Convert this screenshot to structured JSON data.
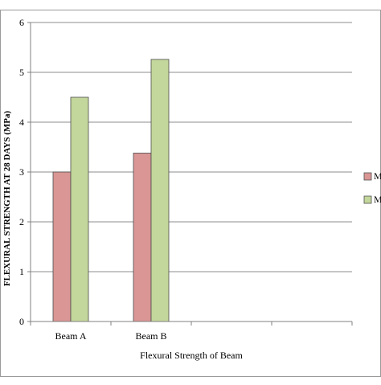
{
  "chart_data": {
    "type": "bar",
    "categories": [
      "Beam A",
      "Beam B",
      "",
      ""
    ],
    "series": [
      {
        "name": "M",
        "color": "#d99694",
        "values": [
          3.0,
          3.38,
          null,
          null
        ]
      },
      {
        "name": "M",
        "color": "#c3d69b",
        "values": [
          4.5,
          5.26,
          null,
          null
        ]
      }
    ],
    "xlabel": "Flexural Strength  of Beam",
    "ylabel": "FLEXURAL STRENGTH  AT 28 DAYS (MPa)",
    "ylim": [
      0,
      6
    ],
    "yticks": [
      0,
      1,
      2,
      3,
      4,
      5,
      6
    ],
    "grid": true,
    "legend_position": "right"
  }
}
